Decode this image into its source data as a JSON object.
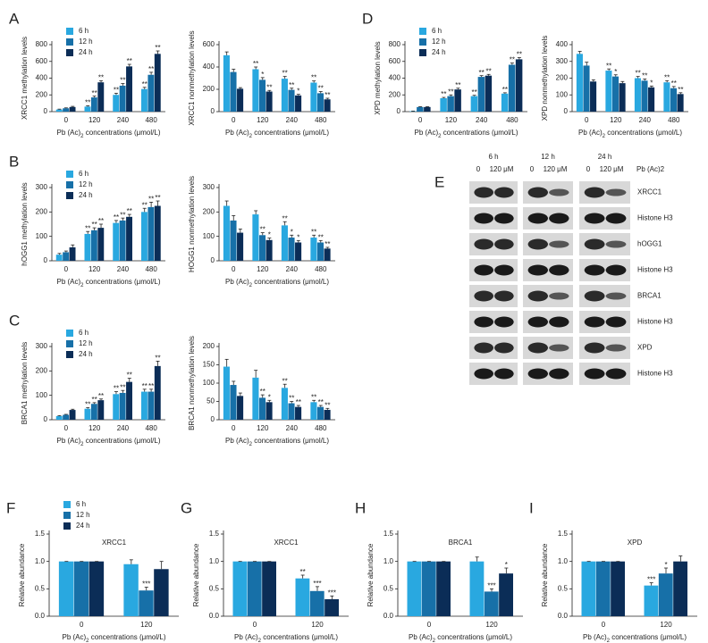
{
  "chart_data": [
    {
      "type": "bar",
      "panel": "A",
      "legend": true,
      "ylabel": "XRCC1 methylation levels",
      "xlabel": [
        "Pb (Ac)",
        "2",
        " concentrations (μmol/L)"
      ],
      "categories": [
        "0",
        "120",
        "240",
        "480"
      ],
      "ylim": [
        0,
        800
      ],
      "yticks": [
        0,
        200,
        400,
        600,
        800
      ],
      "series": [
        {
          "name": "6 h",
          "color": "#29a8e0",
          "values": [
            25,
            60,
            200,
            270
          ],
          "errors": [
            5,
            10,
            20,
            20
          ],
          "significance": [
            null,
            "**",
            "**",
            "**"
          ]
        },
        {
          "name": "12 h",
          "color": "#1770a8",
          "values": [
            40,
            170,
            310,
            440
          ],
          "errors": [
            5,
            15,
            25,
            30
          ],
          "significance": [
            null,
            "**",
            "**",
            "**"
          ]
        },
        {
          "name": "24 h",
          "color": "#0b2d57",
          "values": [
            55,
            350,
            540,
            690
          ],
          "errors": [
            8,
            20,
            25,
            35
          ],
          "significance": [
            null,
            "**",
            "**",
            "**"
          ]
        }
      ]
    },
    {
      "type": "bar",
      "ylabel": "XRCC1 nonmethylation levels",
      "xlabel": [
        "Pb (Ac)",
        "2",
        " concentrations (μmol/L)"
      ],
      "categories": [
        "0",
        "120",
        "240",
        "480"
      ],
      "ylim": [
        0,
        600
      ],
      "yticks": [
        0,
        200,
        400,
        600
      ],
      "series": [
        {
          "color": "#29a8e0",
          "values": [
            505,
            380,
            295,
            260
          ],
          "errors": [
            30,
            20,
            20,
            15
          ],
          "significance": [
            null,
            "**",
            "**",
            "**"
          ]
        },
        {
          "color": "#1770a8",
          "values": [
            355,
            285,
            195,
            165
          ],
          "errors": [
            25,
            20,
            15,
            15
          ],
          "significance": [
            null,
            "*",
            "**",
            "**"
          ]
        },
        {
          "color": "#0b2d57",
          "values": [
            205,
            180,
            145,
            110
          ],
          "errors": [
            10,
            10,
            10,
            10
          ],
          "significance": [
            null,
            "**",
            "*",
            "**"
          ]
        }
      ]
    },
    {
      "type": "bar",
      "panel": "D",
      "legend": true,
      "ylabel": "XPD methylation levels",
      "xlabel": [
        "Pb (Ac)",
        "2",
        " concentrations (μmol/L)"
      ],
      "categories": [
        "0",
        "120",
        "240",
        "480"
      ],
      "ylim": [
        0,
        800
      ],
      "yticks": [
        0,
        200,
        400,
        600,
        800
      ],
      "series": [
        {
          "name": "6 h",
          "color": "#29a8e0",
          "values": [
            5,
            160,
            185,
            215
          ],
          "errors": [
            2,
            10,
            10,
            10
          ],
          "significance": [
            null,
            "**",
            "**",
            "**"
          ]
        },
        {
          "name": "12 h",
          "color": "#1770a8",
          "values": [
            55,
            185,
            415,
            560
          ],
          "errors": [
            4,
            15,
            15,
            20
          ],
          "significance": [
            null,
            "**",
            "**",
            "**"
          ]
        },
        {
          "name": "24 h",
          "color": "#0b2d57",
          "values": [
            55,
            265,
            430,
            625
          ],
          "errors": [
            4,
            15,
            15,
            20
          ],
          "significance": [
            null,
            "**",
            "**",
            "**"
          ]
        }
      ]
    },
    {
      "type": "bar",
      "ylabel": "XPD nonmethylation levels",
      "xlabel": [
        "Pb (Ac)",
        "2",
        " concentrations (μmol/L)"
      ],
      "categories": [
        "0",
        "120",
        "240",
        "480"
      ],
      "ylim": [
        0,
        400
      ],
      "yticks": [
        0,
        100,
        200,
        300,
        400
      ],
      "series": [
        {
          "color": "#29a8e0",
          "values": [
            345,
            245,
            200,
            175
          ],
          "errors": [
            15,
            10,
            10,
            10
          ],
          "significance": [
            null,
            "**",
            "**",
            "**"
          ]
        },
        {
          "color": "#1770a8",
          "values": [
            275,
            210,
            185,
            140
          ],
          "errors": [
            20,
            10,
            10,
            10
          ],
          "significance": [
            null,
            "*",
            "**",
            "**"
          ]
        },
        {
          "color": "#0b2d57",
          "values": [
            180,
            170,
            145,
            105
          ],
          "errors": [
            10,
            10,
            8,
            8
          ],
          "significance": [
            null,
            null,
            "*",
            "**"
          ]
        }
      ]
    },
    {
      "type": "bar",
      "panel": "B",
      "legend": true,
      "ylabel": "hOGG1 methylation levels",
      "xlabel": [
        "Pb (Ac)",
        "2",
        " concentrations (μmol/L)"
      ],
      "categories": [
        "0",
        "120",
        "240",
        "480"
      ],
      "ylim": [
        0,
        300
      ],
      "yticks": [
        0,
        100,
        200,
        300
      ],
      "series": [
        {
          "name": "6 h",
          "color": "#29a8e0",
          "values": [
            25,
            110,
            155,
            200
          ],
          "errors": [
            5,
            10,
            10,
            15
          ],
          "significance": [
            null,
            "**",
            "**",
            "**"
          ]
        },
        {
          "name": "12 h",
          "color": "#1770a8",
          "values": [
            35,
            125,
            165,
            220
          ],
          "errors": [
            5,
            10,
            10,
            20
          ],
          "significance": [
            null,
            "**",
            "**",
            "**"
          ]
        },
        {
          "name": "24 h",
          "color": "#0b2d57",
          "values": [
            55,
            135,
            180,
            225
          ],
          "errors": [
            10,
            15,
            10,
            20
          ],
          "significance": [
            null,
            "**",
            "**",
            "**"
          ]
        }
      ]
    },
    {
      "type": "bar",
      "ylabel": "HOGG1 nonmethylation levels",
      "xlabel": [
        "Pb (Ac)",
        "2",
        " concentrations (μmol/L)"
      ],
      "categories": [
        "0",
        "120",
        "240",
        "480"
      ],
      "ylim": [
        0,
        300
      ],
      "yticks": [
        0,
        100,
        200,
        300
      ],
      "series": [
        {
          "color": "#29a8e0",
          "values": [
            225,
            190,
            145,
            95
          ],
          "errors": [
            20,
            15,
            15,
            10
          ],
          "significance": [
            null,
            null,
            "**",
            "**"
          ]
        },
        {
          "color": "#1770a8",
          "values": [
            165,
            105,
            95,
            75
          ],
          "errors": [
            20,
            10,
            10,
            8
          ],
          "significance": [
            null,
            "**",
            "*",
            "**"
          ]
        },
        {
          "color": "#0b2d57",
          "values": [
            115,
            85,
            75,
            50
          ],
          "errors": [
            15,
            8,
            8,
            5
          ],
          "significance": [
            null,
            "*",
            "*",
            "**"
          ]
        }
      ]
    },
    {
      "type": "bar",
      "panel": "C",
      "legend": true,
      "ylabel": "BRCA1 methylation levels",
      "xlabel": [
        "Pb (Ac)",
        "2",
        " concentrations (μmol/L)"
      ],
      "categories": [
        "0",
        "120",
        "240",
        "480"
      ],
      "ylim": [
        0,
        300
      ],
      "yticks": [
        0,
        100,
        200,
        300
      ],
      "series": [
        {
          "name": "6 h",
          "color": "#29a8e0",
          "values": [
            15,
            45,
            105,
            115
          ],
          "errors": [
            2,
            5,
            10,
            10
          ],
          "significance": [
            null,
            "**",
            "**",
            "**"
          ]
        },
        {
          "name": "12 h",
          "color": "#1770a8",
          "values": [
            20,
            65,
            110,
            115
          ],
          "errors": [
            2,
            5,
            10,
            10
          ],
          "significance": [
            null,
            "**",
            "**",
            "**"
          ]
        },
        {
          "name": "24 h",
          "color": "#0b2d57",
          "values": [
            40,
            80,
            155,
            220
          ],
          "errors": [
            3,
            5,
            15,
            20
          ],
          "significance": [
            null,
            "**",
            "**",
            "**"
          ]
        }
      ]
    },
    {
      "type": "bar",
      "ylabel": "BRCA1 nonmethylation levels",
      "xlabel": [
        "Pb (Ac)",
        "2",
        " concentrations (μmol/L)"
      ],
      "categories": [
        "0",
        "120",
        "240",
        "480"
      ],
      "ylim": [
        0,
        200
      ],
      "yticks": [
        0,
        50,
        100,
        150,
        200
      ],
      "series": [
        {
          "color": "#29a8e0",
          "values": [
            145,
            115,
            87,
            48
          ],
          "errors": [
            20,
            20,
            10,
            5
          ],
          "significance": [
            null,
            null,
            "**",
            "**"
          ]
        },
        {
          "color": "#1770a8",
          "values": [
            95,
            60,
            45,
            35
          ],
          "errors": [
            10,
            8,
            5,
            4
          ],
          "significance": [
            null,
            "**",
            "**",
            "**"
          ]
        },
        {
          "color": "#0b2d57",
          "values": [
            65,
            48,
            35,
            27
          ],
          "errors": [
            8,
            5,
            4,
            4
          ],
          "significance": [
            null,
            "*",
            "**",
            "**"
          ]
        }
      ]
    },
    {
      "type": "bar",
      "panel": "F",
      "legend": true,
      "title": "XRCC1",
      "ylabel": "Relative abundance",
      "xlabel": [
        "Pb (Ac)",
        "2",
        " concentrations (μmol/L)"
      ],
      "categories": [
        "0",
        "120"
      ],
      "ylim": [
        0,
        1.5
      ],
      "yticks": [
        {
          "value": 0,
          "label": "0.0"
        },
        0.5,
        {
          "value": 1,
          "label": "1.0"
        },
        1.5
      ],
      "series": [
        {
          "name": "6 h",
          "color": "#29a8e0",
          "values": [
            1.0,
            0.95
          ],
          "errors": [
            0,
            0.08
          ],
          "significance": [
            null,
            null
          ]
        },
        {
          "name": "12 h",
          "color": "#1770a8",
          "values": [
            1.0,
            0.47
          ],
          "errors": [
            0,
            0.06
          ],
          "significance": [
            null,
            "***"
          ]
        },
        {
          "name": "24 h",
          "color": "#0b2d57",
          "values": [
            1.0,
            0.86
          ],
          "errors": [
            0,
            0.14
          ],
          "significance": [
            null,
            null
          ]
        }
      ]
    },
    {
      "type": "bar",
      "panel": "G",
      "title": "XRCC1",
      "ylabel": "Relative abundance",
      "xlabel": [
        "Pb (Ac)",
        "2",
        " concentrations (μmol/L)"
      ],
      "categories": [
        "0",
        "120"
      ],
      "ylim": [
        0,
        1.5
      ],
      "yticks": [
        {
          "value": 0,
          "label": "0.0"
        },
        0.5,
        {
          "value": 1,
          "label": "1.0"
        },
        1.5
      ],
      "series": [
        {
          "color": "#29a8e0",
          "values": [
            1.0,
            0.69
          ],
          "errors": [
            0,
            0.06
          ],
          "significance": [
            null,
            "**"
          ]
        },
        {
          "color": "#1770a8",
          "values": [
            1.0,
            0.46
          ],
          "errors": [
            0,
            0.08
          ],
          "significance": [
            null,
            "***"
          ]
        },
        {
          "color": "#0b2d57",
          "values": [
            1.0,
            0.31
          ],
          "errors": [
            0,
            0.06
          ],
          "significance": [
            null,
            "***"
          ]
        }
      ]
    },
    {
      "type": "bar",
      "panel": "H",
      "title": "BRCA1",
      "ylabel": "Relative abundance",
      "xlabel": [
        "Pb (Ac)",
        "2",
        " concentrations (μmol/L)"
      ],
      "categories": [
        "0",
        "120"
      ],
      "ylim": [
        0,
        1.5
      ],
      "yticks": [
        {
          "value": 0,
          "label": "0.0"
        },
        0.5,
        {
          "value": 1,
          "label": "1.0"
        },
        1.5
      ],
      "series": [
        {
          "color": "#29a8e0",
          "values": [
            1.0,
            1.0
          ],
          "errors": [
            0,
            0.08
          ],
          "significance": [
            null,
            null
          ]
        },
        {
          "color": "#1770a8",
          "values": [
            1.0,
            0.45
          ],
          "errors": [
            0,
            0.05
          ],
          "significance": [
            null,
            "***"
          ]
        },
        {
          "color": "#0b2d57",
          "values": [
            1.0,
            0.78
          ],
          "errors": [
            0,
            0.1
          ],
          "significance": [
            null,
            "*"
          ]
        }
      ]
    },
    {
      "type": "bar",
      "panel": "I",
      "title": "XPD",
      "ylabel": "Relative abundance",
      "xlabel": [
        "Pb (Ac)",
        "2",
        " concentrations (μmol/L)"
      ],
      "categories": [
        "0",
        "120"
      ],
      "ylim": [
        0,
        1.5
      ],
      "yticks": [
        {
          "value": 0,
          "label": "0.0"
        },
        0.5,
        {
          "value": 1,
          "label": "1.0"
        },
        1.5
      ],
      "series": [
        {
          "color": "#29a8e0",
          "values": [
            1.0,
            0.56
          ],
          "errors": [
            0,
            0.05
          ],
          "significance": [
            null,
            "***"
          ]
        },
        {
          "color": "#1770a8",
          "values": [
            1.0,
            0.78
          ],
          "errors": [
            0,
            0.1
          ],
          "significance": [
            null,
            "*"
          ]
        },
        {
          "color": "#0b2d57",
          "values": [
            1.0,
            1.0
          ],
          "errors": [
            0,
            0.1
          ],
          "significance": [
            null,
            null
          ]
        }
      ]
    }
  ],
  "blot": {
    "panel": "E",
    "treatment": "Pb (Ac)2",
    "groups": [
      {
        "time": "6 h",
        "lanes": [
          "0",
          "120 μM"
        ]
      },
      {
        "time": "12 h",
        "lanes": [
          "0",
          "120 μM"
        ]
      },
      {
        "time": "24 h",
        "lanes": [
          "0",
          "120 μM"
        ]
      }
    ],
    "rows": [
      "XRCC1",
      "Histone H3",
      "hOGG1",
      "Histone H3",
      "BRCA1",
      "Histone H3",
      "XPD",
      "Histone H3"
    ]
  }
}
